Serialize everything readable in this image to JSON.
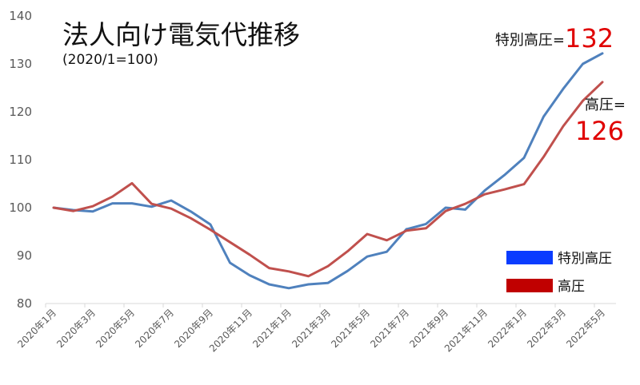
{
  "chart_data": {
    "type": "line",
    "title": "法人向け電気代推移",
    "subtitle": "(2020/1=100)",
    "xlabel": "",
    "ylabel": "",
    "ylim": [
      80,
      140
    ],
    "yticks": [
      80,
      90,
      100,
      110,
      120,
      130,
      140
    ],
    "grid": false,
    "legend_position": "right",
    "x": [
      "2020年1月",
      "2020年2月",
      "2020年3月",
      "2020年4月",
      "2020年5月",
      "2020年6月",
      "2020年7月",
      "2020年8月",
      "2020年9月",
      "2020年10月",
      "2020年11月",
      "2020年12月",
      "2021年1月",
      "2021年2月",
      "2021年3月",
      "2021年4月",
      "2021年5月",
      "2021年6月",
      "2021年7月",
      "2021年8月",
      "2021年9月",
      "2021年10月",
      "2021年11月",
      "2021年12月",
      "2022年1月",
      "2022年2月",
      "2022年3月",
      "2022年4月",
      "2022年5月"
    ],
    "xtick_labels": [
      "2020年1月",
      "2020年3月",
      "2020年5月",
      "2020年7月",
      "2020年9月",
      "2020年11月",
      "2021年1月",
      "2021年3月",
      "2021年5月",
      "2021年7月",
      "2021年9月",
      "2021年11月",
      "2022年1月",
      "2022年3月",
      "2022年5月"
    ],
    "series": [
      {
        "name": "特別高圧",
        "color": "#4f81bd",
        "legend_color": "#0a3cff",
        "values": [
          100,
          99.5,
          99.2,
          100.9,
          100.9,
          100.2,
          101.5,
          99.2,
          96.5,
          88.5,
          85.9,
          84.0,
          83.2,
          84.0,
          84.3,
          86.8,
          89.8,
          90.8,
          95.5,
          96.6,
          100.0,
          99.6,
          103.6,
          106.8,
          110.4,
          119.0,
          124.8,
          130.0,
          132.2
        ]
      },
      {
        "name": "高圧",
        "color": "#c0504d",
        "legend_color": "#c00000",
        "values": [
          100,
          99.3,
          100.3,
          102.3,
          105.1,
          100.8,
          99.8,
          97.8,
          95.4,
          92.8,
          90.2,
          87.4,
          86.7,
          85.7,
          87.8,
          90.9,
          94.5,
          93.2,
          95.2,
          95.7,
          99.3,
          100.8,
          102.8,
          103.8,
          104.9,
          110.6,
          117.0,
          122.3,
          126.2
        ]
      }
    ],
    "annotations": [
      {
        "label": "特別高圧=",
        "value": "132"
      },
      {
        "label": "高圧=",
        "value": "126"
      }
    ]
  }
}
